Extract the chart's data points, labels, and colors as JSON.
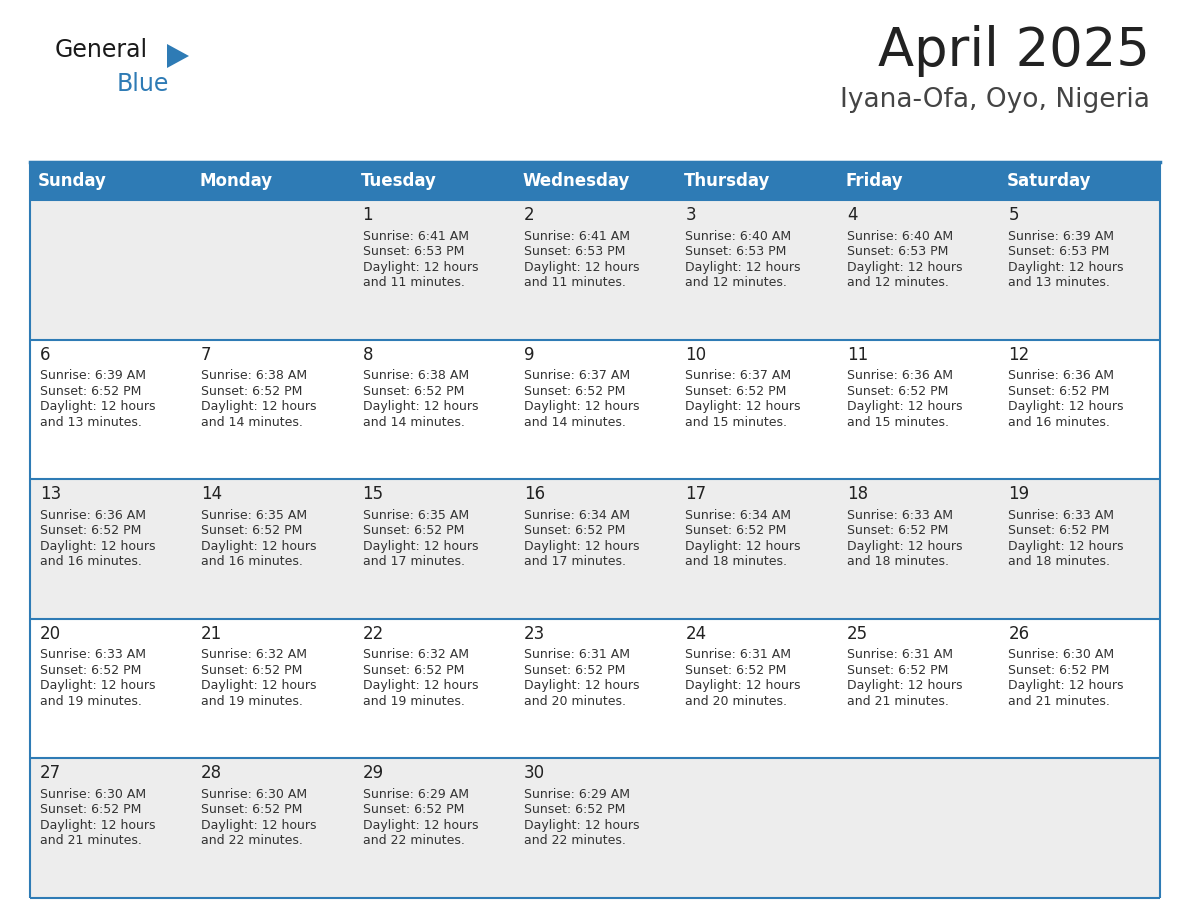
{
  "title": "April 2025",
  "subtitle": "Iyana-Ofa, Oyo, Nigeria",
  "days_of_week": [
    "Sunday",
    "Monday",
    "Tuesday",
    "Wednesday",
    "Thursday",
    "Friday",
    "Saturday"
  ],
  "header_bg": "#2E7BB5",
  "header_text": "#FFFFFF",
  "row_bg_light": "#EDEDED",
  "row_bg_white": "#FFFFFF",
  "cell_text_color": "#333333",
  "day_num_color": "#222222",
  "separator_color": "#2E7BB5",
  "title_color": "#222222",
  "subtitle_color": "#444444",
  "calendar_data": [
    [
      null,
      null,
      {
        "day": "1",
        "sunrise": "6:41 AM",
        "sunset": "6:53 PM",
        "daylight_hours": "12 hours",
        "daylight_mins": "and 11 minutes."
      },
      {
        "day": "2",
        "sunrise": "6:41 AM",
        "sunset": "6:53 PM",
        "daylight_hours": "12 hours",
        "daylight_mins": "and 11 minutes."
      },
      {
        "day": "3",
        "sunrise": "6:40 AM",
        "sunset": "6:53 PM",
        "daylight_hours": "12 hours",
        "daylight_mins": "and 12 minutes."
      },
      {
        "day": "4",
        "sunrise": "6:40 AM",
        "sunset": "6:53 PM",
        "daylight_hours": "12 hours",
        "daylight_mins": "and 12 minutes."
      },
      {
        "day": "5",
        "sunrise": "6:39 AM",
        "sunset": "6:53 PM",
        "daylight_hours": "12 hours",
        "daylight_mins": "and 13 minutes."
      }
    ],
    [
      {
        "day": "6",
        "sunrise": "6:39 AM",
        "sunset": "6:52 PM",
        "daylight_hours": "12 hours",
        "daylight_mins": "and 13 minutes."
      },
      {
        "day": "7",
        "sunrise": "6:38 AM",
        "sunset": "6:52 PM",
        "daylight_hours": "12 hours",
        "daylight_mins": "and 14 minutes."
      },
      {
        "day": "8",
        "sunrise": "6:38 AM",
        "sunset": "6:52 PM",
        "daylight_hours": "12 hours",
        "daylight_mins": "and 14 minutes."
      },
      {
        "day": "9",
        "sunrise": "6:37 AM",
        "sunset": "6:52 PM",
        "daylight_hours": "12 hours",
        "daylight_mins": "and 14 minutes."
      },
      {
        "day": "10",
        "sunrise": "6:37 AM",
        "sunset": "6:52 PM",
        "daylight_hours": "12 hours",
        "daylight_mins": "and 15 minutes."
      },
      {
        "day": "11",
        "sunrise": "6:36 AM",
        "sunset": "6:52 PM",
        "daylight_hours": "12 hours",
        "daylight_mins": "and 15 minutes."
      },
      {
        "day": "12",
        "sunrise": "6:36 AM",
        "sunset": "6:52 PM",
        "daylight_hours": "12 hours",
        "daylight_mins": "and 16 minutes."
      }
    ],
    [
      {
        "day": "13",
        "sunrise": "6:36 AM",
        "sunset": "6:52 PM",
        "daylight_hours": "12 hours",
        "daylight_mins": "and 16 minutes."
      },
      {
        "day": "14",
        "sunrise": "6:35 AM",
        "sunset": "6:52 PM",
        "daylight_hours": "12 hours",
        "daylight_mins": "and 16 minutes."
      },
      {
        "day": "15",
        "sunrise": "6:35 AM",
        "sunset": "6:52 PM",
        "daylight_hours": "12 hours",
        "daylight_mins": "and 17 minutes."
      },
      {
        "day": "16",
        "sunrise": "6:34 AM",
        "sunset": "6:52 PM",
        "daylight_hours": "12 hours",
        "daylight_mins": "and 17 minutes."
      },
      {
        "day": "17",
        "sunrise": "6:34 AM",
        "sunset": "6:52 PM",
        "daylight_hours": "12 hours",
        "daylight_mins": "and 18 minutes."
      },
      {
        "day": "18",
        "sunrise": "6:33 AM",
        "sunset": "6:52 PM",
        "daylight_hours": "12 hours",
        "daylight_mins": "and 18 minutes."
      },
      {
        "day": "19",
        "sunrise": "6:33 AM",
        "sunset": "6:52 PM",
        "daylight_hours": "12 hours",
        "daylight_mins": "and 18 minutes."
      }
    ],
    [
      {
        "day": "20",
        "sunrise": "6:33 AM",
        "sunset": "6:52 PM",
        "daylight_hours": "12 hours",
        "daylight_mins": "and 19 minutes."
      },
      {
        "day": "21",
        "sunrise": "6:32 AM",
        "sunset": "6:52 PM",
        "daylight_hours": "12 hours",
        "daylight_mins": "and 19 minutes."
      },
      {
        "day": "22",
        "sunrise": "6:32 AM",
        "sunset": "6:52 PM",
        "daylight_hours": "12 hours",
        "daylight_mins": "and 19 minutes."
      },
      {
        "day": "23",
        "sunrise": "6:31 AM",
        "sunset": "6:52 PM",
        "daylight_hours": "12 hours",
        "daylight_mins": "and 20 minutes."
      },
      {
        "day": "24",
        "sunrise": "6:31 AM",
        "sunset": "6:52 PM",
        "daylight_hours": "12 hours",
        "daylight_mins": "and 20 minutes."
      },
      {
        "day": "25",
        "sunrise": "6:31 AM",
        "sunset": "6:52 PM",
        "daylight_hours": "12 hours",
        "daylight_mins": "and 21 minutes."
      },
      {
        "day": "26",
        "sunrise": "6:30 AM",
        "sunset": "6:52 PM",
        "daylight_hours": "12 hours",
        "daylight_mins": "and 21 minutes."
      }
    ],
    [
      {
        "day": "27",
        "sunrise": "6:30 AM",
        "sunset": "6:52 PM",
        "daylight_hours": "12 hours",
        "daylight_mins": "and 21 minutes."
      },
      {
        "day": "28",
        "sunrise": "6:30 AM",
        "sunset": "6:52 PM",
        "daylight_hours": "12 hours",
        "daylight_mins": "and 22 minutes."
      },
      {
        "day": "29",
        "sunrise": "6:29 AM",
        "sunset": "6:52 PM",
        "daylight_hours": "12 hours",
        "daylight_mins": "and 22 minutes."
      },
      {
        "day": "30",
        "sunrise": "6:29 AM",
        "sunset": "6:52 PM",
        "daylight_hours": "12 hours",
        "daylight_mins": "and 22 minutes."
      },
      null,
      null,
      null
    ]
  ],
  "logo_general_color": "#1a1a1a",
  "logo_blue_color": "#2E7BB5",
  "logo_triangle_color": "#2E7BB5",
  "title_fontsize": 38,
  "subtitle_fontsize": 19,
  "header_fontsize": 12,
  "cell_day_fontsize": 12,
  "cell_info_fontsize": 9,
  "logo_fontsize": 17
}
